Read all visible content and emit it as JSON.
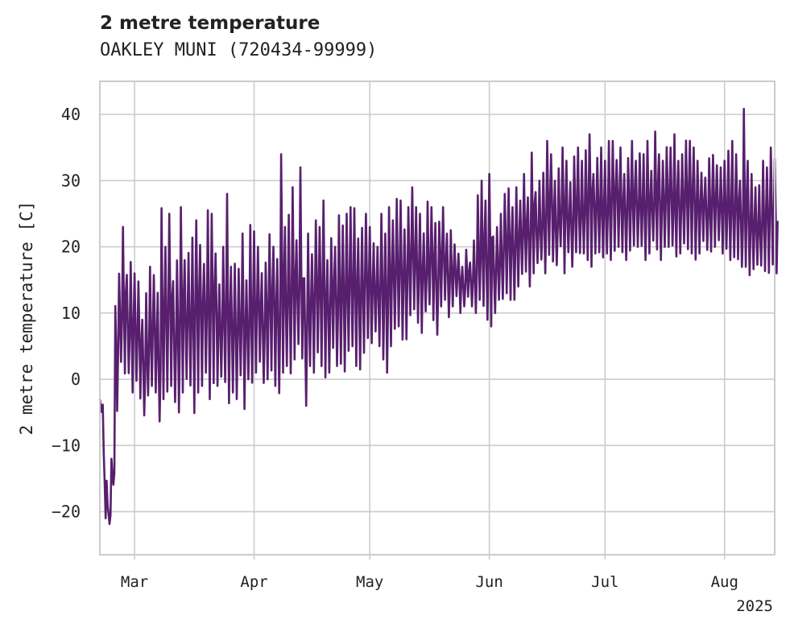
{
  "chart_data": {
    "type": "line",
    "title": "2 metre temperature",
    "subtitle": "OAKLEY MUNI (720434-99999)",
    "ylabel": "2 metre temperature [C]",
    "xlabel": "",
    "x_start": "2025-02-20",
    "x_end": "2025-08-14",
    "ylim": [
      -26.5,
      45
    ],
    "yticks": [
      -20,
      -10,
      0,
      10,
      20,
      30,
      40
    ],
    "xticks": [
      {
        "label": "Mar",
        "date": "2025-03-01"
      },
      {
        "label": "Apr",
        "date": "2025-04-01"
      },
      {
        "label": "May",
        "date": "2025-05-01"
      },
      {
        "label": "Jun",
        "date": "2025-06-01"
      },
      {
        "label": "Jul",
        "date": "2025-07-01"
      },
      {
        "label": "Aug",
        "date": "2025-08-01"
      }
    ],
    "year_label": "2025",
    "grid": true,
    "line_color": "#581f6e",
    "series": [
      {
        "x": [
          "2025-02-20",
          "2025-02-21",
          "2025-02-22",
          "2025-02-23",
          "2025-02-24",
          "2025-02-25",
          "2025-02-26",
          "2025-02-27",
          "2025-02-28",
          "2025-03-01",
          "2025-03-02",
          "2025-03-03",
          "2025-03-04",
          "2025-03-05",
          "2025-03-06",
          "2025-03-07",
          "2025-03-08",
          "2025-03-09",
          "2025-03-10",
          "2025-03-11",
          "2025-03-12",
          "2025-03-13",
          "2025-03-14",
          "2025-03-15",
          "2025-03-16",
          "2025-03-17",
          "2025-03-18",
          "2025-03-19",
          "2025-03-20",
          "2025-03-21",
          "2025-03-22",
          "2025-03-23",
          "2025-03-24",
          "2025-03-25",
          "2025-03-26",
          "2025-03-27",
          "2025-03-28",
          "2025-03-29",
          "2025-03-30",
          "2025-03-31",
          "2025-04-01",
          "2025-04-02",
          "2025-04-03",
          "2025-04-04",
          "2025-04-05",
          "2025-04-06",
          "2025-04-07",
          "2025-04-08",
          "2025-04-09",
          "2025-04-10",
          "2025-04-11",
          "2025-04-12",
          "2025-04-13",
          "2025-04-14",
          "2025-04-15",
          "2025-04-16",
          "2025-04-17",
          "2025-04-18",
          "2025-04-19",
          "2025-04-20",
          "2025-04-21",
          "2025-04-22",
          "2025-04-23",
          "2025-04-24",
          "2025-04-25",
          "2025-04-26",
          "2025-04-27",
          "2025-04-28",
          "2025-04-29",
          "2025-04-30",
          "2025-05-01",
          "2025-05-02",
          "2025-05-03",
          "2025-05-04",
          "2025-05-05",
          "2025-05-06",
          "2025-05-07",
          "2025-05-08",
          "2025-05-09",
          "2025-05-10",
          "2025-05-11",
          "2025-05-12",
          "2025-05-13",
          "2025-05-14",
          "2025-05-15",
          "2025-05-16",
          "2025-05-17",
          "2025-05-18",
          "2025-05-19",
          "2025-05-20",
          "2025-05-21",
          "2025-05-22",
          "2025-05-23",
          "2025-05-24",
          "2025-05-25",
          "2025-05-26",
          "2025-05-27",
          "2025-05-28",
          "2025-05-29",
          "2025-05-30",
          "2025-05-31",
          "2025-06-01",
          "2025-06-02",
          "2025-06-03",
          "2025-06-04",
          "2025-06-05",
          "2025-06-06",
          "2025-06-07",
          "2025-06-08",
          "2025-06-09",
          "2025-06-10",
          "2025-06-11",
          "2025-06-12",
          "2025-06-13",
          "2025-06-14",
          "2025-06-15",
          "2025-06-16",
          "2025-06-17",
          "2025-06-18",
          "2025-06-19",
          "2025-06-20",
          "2025-06-21",
          "2025-06-22",
          "2025-06-23",
          "2025-06-24",
          "2025-06-25",
          "2025-06-26",
          "2025-06-27",
          "2025-06-28",
          "2025-06-29",
          "2025-06-30",
          "2025-07-01",
          "2025-07-02",
          "2025-07-03",
          "2025-07-04",
          "2025-07-05",
          "2025-07-06",
          "2025-07-07",
          "2025-07-08",
          "2025-07-09",
          "2025-07-10",
          "2025-07-11",
          "2025-07-12",
          "2025-07-13",
          "2025-07-14",
          "2025-07-15",
          "2025-07-16",
          "2025-07-17",
          "2025-07-18",
          "2025-07-19",
          "2025-07-20",
          "2025-07-21",
          "2025-07-22",
          "2025-07-23",
          "2025-07-24",
          "2025-07-25",
          "2025-07-26",
          "2025-07-27",
          "2025-07-28",
          "2025-07-29",
          "2025-07-30",
          "2025-07-31",
          "2025-08-01",
          "2025-08-02",
          "2025-08-03",
          "2025-08-04",
          "2025-08-05",
          "2025-08-06",
          "2025-08-07",
          "2025-08-08",
          "2025-08-09",
          "2025-08-10",
          "2025-08-11",
          "2025-08-12",
          "2025-08-13",
          "2025-08-14"
        ],
        "ymin": [
          -5,
          -21,
          -22,
          -16,
          -6,
          2,
          -1,
          0,
          -2,
          -1,
          -4,
          -6,
          -3,
          -1,
          -2,
          -7,
          -3,
          -2,
          -1,
          -4,
          -5,
          -2,
          -1,
          -3,
          -6,
          -2,
          -1,
          1,
          -3,
          -2,
          -1,
          0,
          -1,
          -4,
          -2,
          -3,
          -1,
          -6,
          0,
          -1,
          1,
          2,
          -2,
          0,
          1,
          -1,
          -3,
          1,
          2,
          0,
          3,
          4,
          1,
          -4,
          2,
          1,
          3,
          2,
          0,
          1,
          4,
          2,
          1,
          0,
          3,
          5,
          2,
          1,
          4,
          6,
          5,
          7,
          5,
          3,
          1,
          5,
          7,
          8,
          6,
          5,
          9,
          10,
          8,
          7,
          9,
          10,
          8,
          6,
          11,
          12,
          9,
          11,
          12,
          10,
          11,
          12,
          11,
          10,
          12,
          11,
          9,
          8,
          10,
          12,
          12,
          13,
          12,
          12,
          14,
          15,
          16,
          14,
          16,
          17,
          17,
          16,
          18,
          17,
          17,
          19,
          16,
          18,
          17,
          19,
          18,
          19,
          18,
          17,
          19,
          18,
          18,
          19,
          18,
          19,
          20,
          19,
          18,
          19,
          19,
          20,
          19,
          18,
          19,
          20,
          19,
          18,
          19,
          20,
          19,
          18,
          19,
          20,
          19,
          19,
          18,
          19,
          20,
          19,
          19,
          20,
          20,
          19,
          19,
          18,
          17,
          18,
          16,
          17,
          15,
          16,
          17,
          16,
          15,
          16,
          16,
          16
        ],
        "ymax": [
          -3,
          -11,
          -19,
          -12,
          12,
          17,
          24,
          16,
          19,
          16,
          15,
          9,
          13,
          17,
          16,
          14,
          27,
          20,
          25,
          15,
          18,
          26,
          18,
          20,
          23,
          24,
          22,
          18,
          26,
          25,
          19,
          15,
          20,
          28,
          17,
          18,
          18,
          22,
          15,
          24,
          24,
          20,
          17,
          19,
          23,
          21,
          19,
          34,
          23,
          25,
          29,
          21,
          32,
          17,
          22,
          20,
          24,
          23,
          27,
          18,
          22,
          20,
          26,
          24,
          25,
          26,
          27,
          23,
          24,
          25,
          23,
          21,
          20,
          25,
          22,
          26,
          24,
          28,
          27,
          24,
          26,
          29,
          26,
          25,
          23,
          27,
          26,
          24,
          25,
          26,
          22,
          23,
          21,
          19,
          17,
          20,
          18,
          22,
          28,
          30,
          27,
          31,
          22,
          23,
          25,
          28,
          30,
          26,
          29,
          27,
          31,
          28,
          35,
          29,
          30,
          32,
          36,
          34,
          30,
          32,
          35,
          33,
          31,
          34,
          35,
          33,
          36,
          37,
          32,
          34,
          35,
          33,
          36,
          36,
          34,
          35,
          31,
          34,
          36,
          33,
          35,
          34,
          36,
          32,
          38,
          34,
          33,
          36,
          35,
          37,
          33,
          34,
          37,
          36,
          35,
          33,
          32,
          31,
          34,
          35,
          33,
          32,
          33,
          35,
          36,
          34,
          30,
          42,
          33,
          31,
          29,
          30,
          33,
          32,
          35,
          35
        ]
      }
    ]
  }
}
